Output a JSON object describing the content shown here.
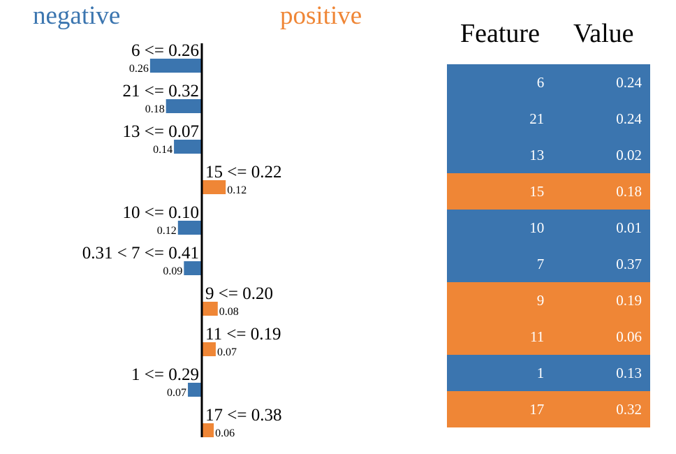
{
  "legend": {
    "negative": "negative",
    "positive": "positive"
  },
  "colors": {
    "negative": "#3b75af",
    "positive": "#ef8636"
  },
  "table_header": {
    "feature": "Feature",
    "value": "Value"
  },
  "chart_data": {
    "type": "bar",
    "orientation": "horizontal",
    "categories": [
      "6 <= 0.26",
      "21 <= 0.32",
      "13 <= 0.07",
      "15 <= 0.22",
      "10 <= 0.10",
      "0.31 < 7 <= 0.41",
      "9 <= 0.20",
      "11 <= 0.19",
      "1 <= 0.29",
      "17 <= 0.38"
    ],
    "values": [
      -0.26,
      -0.18,
      -0.14,
      0.12,
      -0.12,
      -0.09,
      0.08,
      0.07,
      -0.07,
      0.06
    ],
    "value_labels": [
      "0.26",
      "0.18",
      "0.14",
      "0.12",
      "0.12",
      "0.09",
      "0.08",
      "0.07",
      "0.07",
      "0.06"
    ],
    "legend": [
      "negative",
      "positive"
    ],
    "grid": false
  },
  "table": {
    "rows": [
      {
        "feature": "6",
        "value": "0.24",
        "sign": "negative"
      },
      {
        "feature": "21",
        "value": "0.24",
        "sign": "negative"
      },
      {
        "feature": "13",
        "value": "0.02",
        "sign": "negative"
      },
      {
        "feature": "15",
        "value": "0.18",
        "sign": "positive"
      },
      {
        "feature": "10",
        "value": "0.01",
        "sign": "negative"
      },
      {
        "feature": "7",
        "value": "0.37",
        "sign": "negative"
      },
      {
        "feature": "9",
        "value": "0.19",
        "sign": "positive"
      },
      {
        "feature": "11",
        "value": "0.06",
        "sign": "positive"
      },
      {
        "feature": "1",
        "value": "0.13",
        "sign": "negative"
      },
      {
        "feature": "17",
        "value": "0.32",
        "sign": "positive"
      }
    ]
  }
}
